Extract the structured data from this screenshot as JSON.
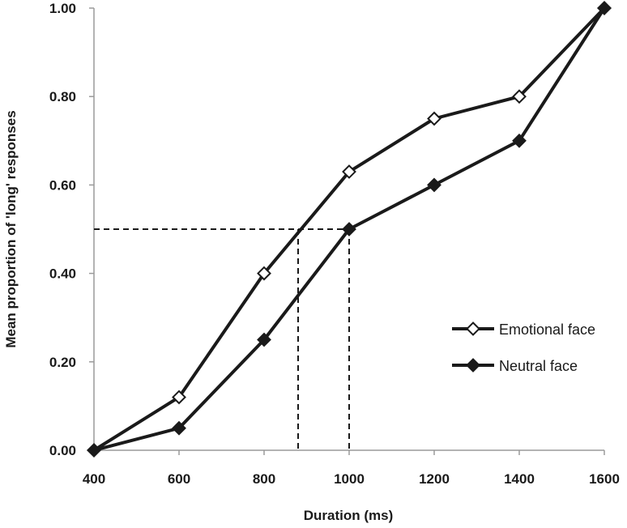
{
  "chart_data": {
    "type": "line",
    "title": "",
    "xlabel": "Duration (ms)",
    "ylabel": "Mean proportion of 'long' responses",
    "xlim": [
      400,
      1600
    ],
    "ylim": [
      0,
      1
    ],
    "x_ticks": [
      400,
      600,
      800,
      1000,
      1200,
      1400,
      1600
    ],
    "x_tick_labels": [
      "400",
      "600",
      "800",
      "1000",
      "1200",
      "1400",
      "1600"
    ],
    "y_ticks": [
      0,
      0.2,
      0.4,
      0.6,
      0.8,
      1.0
    ],
    "y_tick_labels": [
      "0.00",
      "0.20",
      "0.40",
      "0.60",
      "0.80",
      "1.00"
    ],
    "grid": false,
    "legend_position": "right",
    "series": [
      {
        "name": "Emotional face",
        "marker": "open-diamond",
        "x": [
          400,
          600,
          800,
          1000,
          1200,
          1400,
          1600
        ],
        "values": [
          0.0,
          0.12,
          0.4,
          0.63,
          0.75,
          0.8,
          1.0
        ]
      },
      {
        "name": "Neutral face",
        "marker": "filled-diamond",
        "x": [
          400,
          600,
          800,
          1000,
          1200,
          1400,
          1600
        ],
        "values": [
          0.0,
          0.05,
          0.25,
          0.5,
          0.6,
          0.7,
          1.0
        ]
      }
    ],
    "reference_lines": {
      "y": 0.5,
      "x_points": [
        880,
        1000
      ]
    },
    "colors": {
      "line": "#1a1a1a",
      "axis": "#9a9a9a",
      "marker_open_fill": "#ffffff",
      "marker_filled_fill": "#1a1a1a"
    }
  }
}
